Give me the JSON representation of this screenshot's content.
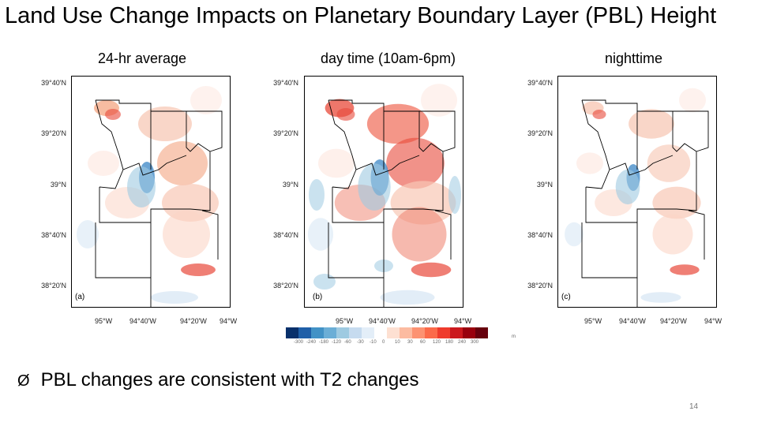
{
  "slide": {
    "title": "Land Use Change Impacts on Planetary Boundary Layer (PBL) Height",
    "bullet_symbol": "Ø",
    "bullet_text": "PBL changes are consistent with T2 changes",
    "page_number": "14"
  },
  "panels": [
    {
      "heading": "24-hr average",
      "label": "(a)"
    },
    {
      "heading": "day time (10am-6pm)",
      "label": "(b)"
    },
    {
      "heading": "nighttime",
      "label": "(c)"
    }
  ],
  "axes": {
    "lat_ticks": [
      "39°40'N",
      "39°20'N",
      "39°N",
      "38°40'N",
      "38°20'N"
    ],
    "lon_ticks": [
      "95°W",
      "94°40'W",
      "94°20'W",
      "94°W"
    ]
  },
  "colorbar": {
    "colors": [
      "#08306b",
      "#1f5fa8",
      "#4292c6",
      "#6baed6",
      "#9ecae1",
      "#c6dbef",
      "#e3eef8",
      "#ffffff",
      "#fde0d2",
      "#fcbba1",
      "#fc9272",
      "#fb6a4a",
      "#ef3b2c",
      "#cb181d",
      "#99000d",
      "#67000d"
    ],
    "labels": [
      "-300",
      "-240",
      "-180",
      "-120",
      "-60",
      "-30",
      "-10",
      "0",
      "10",
      "30",
      "60",
      "120",
      "180",
      "240",
      "300"
    ],
    "unit": "m"
  },
  "colors": {
    "warm": "#e8493a",
    "cool": "#3a85c6",
    "boundary": "#000000"
  }
}
